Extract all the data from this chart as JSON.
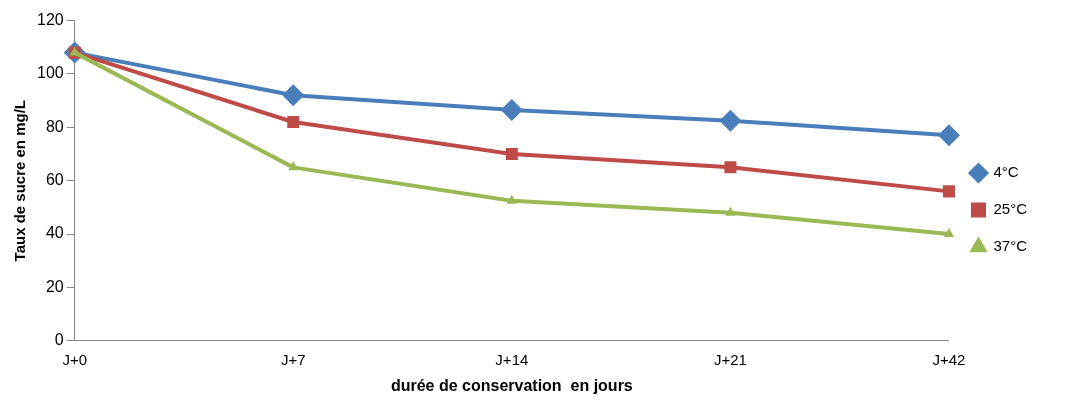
{
  "chart_data": {
    "type": "line",
    "xlabel": "durée de conservation  en jours",
    "ylabel": "Taux de sucre en mg/L",
    "categories": [
      "J+0",
      "J+7",
      "J+14",
      "J+21",
      "J+42"
    ],
    "ylim": [
      0,
      120
    ],
    "yticks": [
      0,
      20,
      40,
      60,
      80,
      100,
      120
    ],
    "grid": false,
    "legend": "right",
    "series": [
      {
        "name": "4°C",
        "color": "#4a7ebb",
        "marker": "diamond",
        "values": [
          108,
          92,
          86.5,
          82.5,
          77
        ]
      },
      {
        "name": "25°C",
        "color": "#be4b48",
        "marker": "square",
        "values": [
          108,
          82,
          70,
          65,
          56
        ]
      },
      {
        "name": "37°C",
        "color": "#98b954",
        "marker": "triangle",
        "values": [
          108,
          65,
          52.5,
          48,
          40
        ]
      }
    ]
  }
}
